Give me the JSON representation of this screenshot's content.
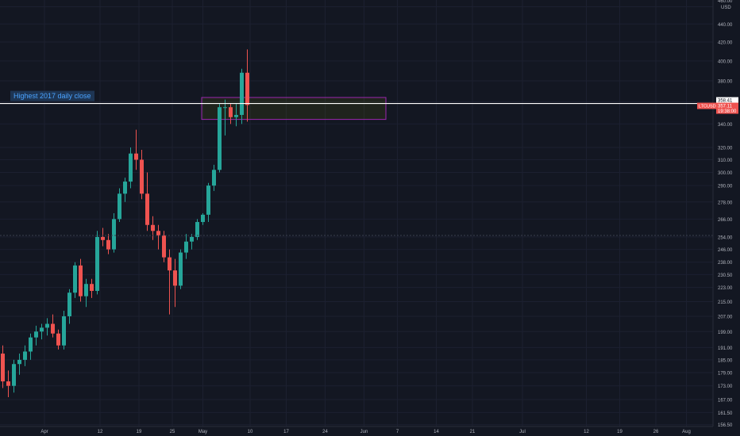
{
  "chart_data": {
    "type": "candlestick",
    "symbol": "LTCUSD",
    "currency": "USD",
    "price_axis_ticks": [
      156.5,
      161.5,
      167.0,
      173.0,
      179.0,
      185.0,
      191.0,
      199.0,
      207.0,
      215.0,
      223.0,
      230.5,
      238.0,
      246.0,
      254.0,
      266.0,
      278.0,
      290.0,
      300.0,
      310.0,
      320.0,
      340.0,
      360.0,
      380.0,
      400.0,
      420.0,
      440.0,
      460.0
    ],
    "price_axis_labels": [
      "156.50",
      "161.50",
      "167.00",
      "173.00",
      "179.00",
      "185.00",
      "191.00",
      "199.00",
      "207.00",
      "215.00",
      "223.00",
      "230.50",
      "238.00",
      "246.00",
      "254.00",
      "266.00",
      "278.00",
      "290.00",
      "300.00",
      "310.00",
      "320.00",
      "340.00",
      "360.00",
      "380.00",
      "400.00",
      "420.00",
      "440.00",
      "460.00"
    ],
    "time_axis_labels": [
      "Apr",
      "12",
      "19",
      "25",
      "May",
      "10",
      "17",
      "24",
      "Jun",
      "7",
      "14",
      "21",
      "Jul",
      "12",
      "19",
      "26",
      "Aug"
    ],
    "horizontal_line_price": 358.41,
    "horizontal_line_label": "Highest 2017 daily close",
    "zone_price_range": [
      344,
      364
    ],
    "crosshair_price": 255,
    "badges": {
      "line_price": "358.41",
      "symbol": "LTCUSD",
      "last_price": "357.11",
      "countdown": "19:38:00"
    },
    "candles": [
      {
        "o": 188,
        "h": 192,
        "l": 172,
        "c": 175
      },
      {
        "o": 175,
        "h": 180,
        "l": 168,
        "c": 173
      },
      {
        "o": 173,
        "h": 185,
        "l": 170,
        "c": 183
      },
      {
        "o": 183,
        "h": 188,
        "l": 178,
        "c": 185
      },
      {
        "o": 185,
        "h": 192,
        "l": 182,
        "c": 189
      },
      {
        "o": 189,
        "h": 198,
        "l": 185,
        "c": 196
      },
      {
        "o": 196,
        "h": 202,
        "l": 192,
        "c": 199
      },
      {
        "o": 199,
        "h": 203,
        "l": 195,
        "c": 201
      },
      {
        "o": 201,
        "h": 206,
        "l": 197,
        "c": 203
      },
      {
        "o": 203,
        "h": 208,
        "l": 196,
        "c": 198
      },
      {
        "o": 198,
        "h": 200,
        "l": 190,
        "c": 192
      },
      {
        "o": 192,
        "h": 210,
        "l": 190,
        "c": 207
      },
      {
        "o": 207,
        "h": 222,
        "l": 203,
        "c": 220
      },
      {
        "o": 220,
        "h": 238,
        "l": 217,
        "c": 236
      },
      {
        "o": 236,
        "h": 240,
        "l": 215,
        "c": 218
      },
      {
        "o": 218,
        "h": 228,
        "l": 212,
        "c": 225
      },
      {
        "o": 225,
        "h": 228,
        "l": 217,
        "c": 221
      },
      {
        "o": 221,
        "h": 258,
        "l": 219,
        "c": 254
      },
      {
        "o": 254,
        "h": 260,
        "l": 248,
        "c": 252
      },
      {
        "o": 252,
        "h": 256,
        "l": 243,
        "c": 246
      },
      {
        "o": 246,
        "h": 270,
        "l": 244,
        "c": 266
      },
      {
        "o": 266,
        "h": 288,
        "l": 264,
        "c": 284
      },
      {
        "o": 284,
        "h": 296,
        "l": 278,
        "c": 293
      },
      {
        "o": 293,
        "h": 320,
        "l": 288,
        "c": 315
      },
      {
        "o": 315,
        "h": 335,
        "l": 302,
        "c": 310
      },
      {
        "o": 310,
        "h": 318,
        "l": 280,
        "c": 284
      },
      {
        "o": 284,
        "h": 300,
        "l": 258,
        "c": 262
      },
      {
        "o": 262,
        "h": 268,
        "l": 252,
        "c": 258
      },
      {
        "o": 258,
        "h": 262,
        "l": 246,
        "c": 255
      },
      {
        "o": 255,
        "h": 258,
        "l": 238,
        "c": 241
      },
      {
        "o": 241,
        "h": 246,
        "l": 208,
        "c": 233
      },
      {
        "o": 233,
        "h": 240,
        "l": 212,
        "c": 224
      },
      {
        "o": 224,
        "h": 246,
        "l": 222,
        "c": 244
      },
      {
        "o": 244,
        "h": 256,
        "l": 240,
        "c": 251
      },
      {
        "o": 251,
        "h": 256,
        "l": 246,
        "c": 254
      },
      {
        "o": 254,
        "h": 266,
        "l": 252,
        "c": 264
      },
      {
        "o": 264,
        "h": 270,
        "l": 262,
        "c": 269
      },
      {
        "o": 269,
        "h": 292,
        "l": 264,
        "c": 290
      },
      {
        "o": 290,
        "h": 306,
        "l": 286,
        "c": 302
      },
      {
        "o": 302,
        "h": 358,
        "l": 300,
        "c": 355
      },
      {
        "o": 355,
        "h": 362,
        "l": 330,
        "c": 355
      },
      {
        "o": 355,
        "h": 358,
        "l": 340,
        "c": 346
      },
      {
        "o": 346,
        "h": 358,
        "l": 338,
        "c": 348
      },
      {
        "o": 348,
        "h": 392,
        "l": 340,
        "c": 388
      },
      {
        "o": 388,
        "h": 412,
        "l": 342,
        "c": 357
      }
    ]
  }
}
